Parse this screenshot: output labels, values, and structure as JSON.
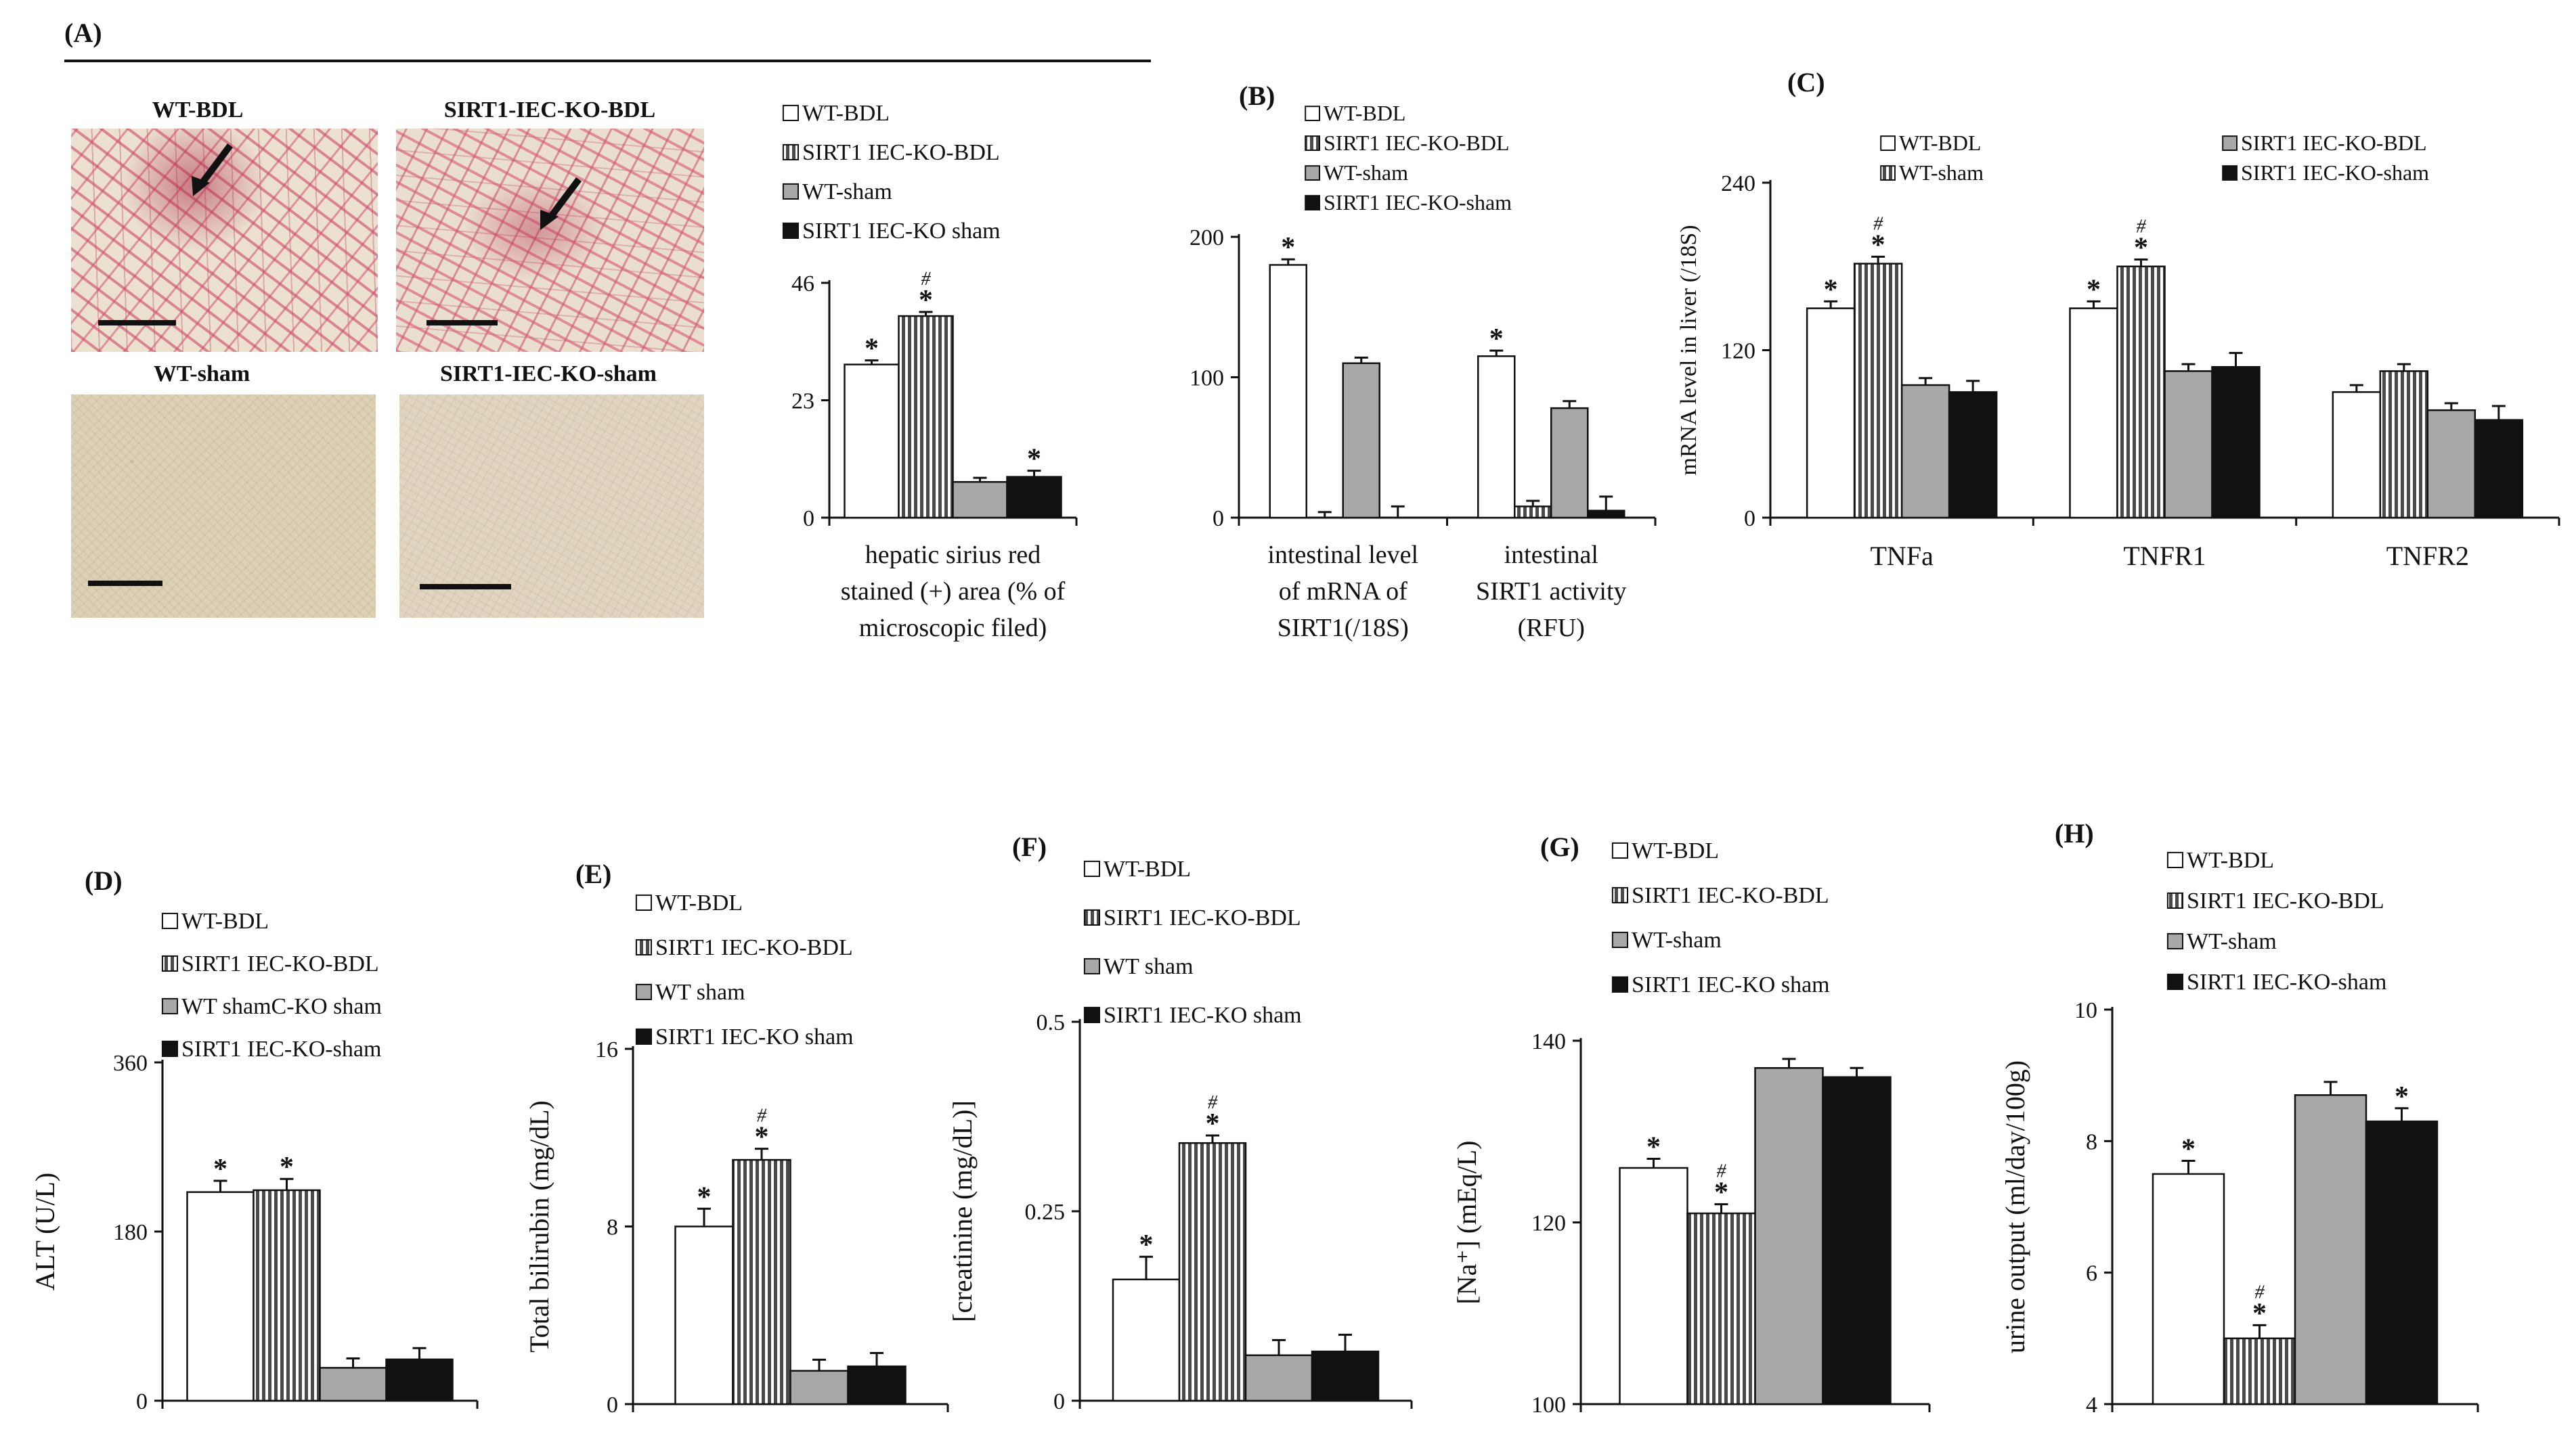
{
  "colors": {
    "wt_bdl": "#ffffff",
    "ko_bdl_stripe": "#4a4a4a",
    "wt_sham": "#a8a8a8",
    "ko_sham": "#111111"
  },
  "panel_A": {
    "label": "(A)",
    "images": {
      "wt_bdl": "WT-BDL",
      "ko_bdl": "SIRT1-IEC-KO-BDL",
      "wt_sham": "WT-sham",
      "ko_sham": "SIRT1-IEC-KO-sham"
    }
  },
  "panel_B": {
    "label": "(B)"
  },
  "panel_C": {
    "label": "(C)"
  },
  "panel_D": {
    "label": "(D)"
  },
  "panel_E": {
    "label": "(E)"
  },
  "panel_F": {
    "label": "(F)"
  },
  "panel_G": {
    "label": "(G)"
  },
  "panel_H": {
    "label": "(H)"
  },
  "chart_data": [
    {
      "id": "A",
      "type": "bar",
      "categories": [
        "hepatic sirius red stained (+) area (% of microscopic filed)"
      ],
      "category_lines": [
        [
          "hepatic sirius red",
          "stained (+) area (% of",
          "microscopic filed)"
        ]
      ],
      "legend": [
        "WT-BDL",
        "SIRT1 IEC-KO-BDL",
        "WT-sham",
        "SIRT1 IEC-KO sham"
      ],
      "series": [
        {
          "name": "WT-BDL",
          "values": [
            30
          ],
          "errors": [
            0.8
          ],
          "marks": [
            "*"
          ]
        },
        {
          "name": "SIRT1 IEC-KO-BDL",
          "values": [
            39.5
          ],
          "errors": [
            0.8
          ],
          "marks": [
            "*#"
          ]
        },
        {
          "name": "WT-sham",
          "values": [
            7
          ],
          "errors": [
            0.8
          ],
          "marks": [
            ""
          ]
        },
        {
          "name": "SIRT1 IEC-KO sham",
          "values": [
            8
          ],
          "errors": [
            1.2
          ],
          "marks": [
            "*"
          ]
        }
      ],
      "ylabel": "",
      "ylim": [
        0,
        46
      ],
      "yticks": [
        0,
        23,
        46
      ]
    },
    {
      "id": "B",
      "type": "bar",
      "categories": [
        "intestinal level of mRNA of SIRT1(/18S)",
        "intestinal SIRT1 activity (RFU)"
      ],
      "category_lines": [
        [
          "intestinal level",
          "of mRNA of",
          "SIRT1(/18S)"
        ],
        [
          "intestinal",
          "SIRT1 activity",
          "(RFU)"
        ]
      ],
      "legend": [
        "WT-BDL",
        "SIRT1 IEC-KO-BDL",
        "WT-sham",
        "SIRT1 IEC-KO-sham"
      ],
      "series": [
        {
          "name": "WT-BDL",
          "values": [
            180,
            115
          ],
          "errors": [
            4,
            4
          ],
          "marks": [
            "*",
            "*"
          ]
        },
        {
          "name": "SIRT1 IEC-KO-BDL",
          "values": [
            0,
            8
          ],
          "errors": [
            4,
            4
          ],
          "marks": [
            "",
            ""
          ]
        },
        {
          "name": "WT-sham",
          "values": [
            110,
            78
          ],
          "errors": [
            4,
            5
          ],
          "marks": [
            "",
            ""
          ]
        },
        {
          "name": "SIRT1 IEC-KO-sham",
          "values": [
            0,
            5
          ],
          "errors": [
            8,
            10
          ],
          "marks": [
            "",
            ""
          ]
        }
      ],
      "ylabel": "",
      "ylim": [
        0,
        200
      ],
      "yticks": [
        0,
        100,
        200
      ]
    },
    {
      "id": "C",
      "type": "bar",
      "categories": [
        "TNFa",
        "TNFR1",
        "TNFR2"
      ],
      "legend": [
        "WT-BDL",
        "WT-sham",
        "SIRT1 IEC-KO-BDL",
        "SIRT1 IEC-KO-sham"
      ],
      "series": [
        {
          "name": "WT-BDL",
          "values": [
            150,
            150,
            90
          ],
          "errors": [
            5,
            5,
            5
          ],
          "marks": [
            "*",
            "*",
            ""
          ]
        },
        {
          "name": "SIRT1 IEC-KO-BDL",
          "values": [
            182,
            180,
            105
          ],
          "errors": [
            5,
            5,
            5
          ],
          "marks": [
            "*#",
            "*#",
            ""
          ]
        },
        {
          "name": "WT-sham",
          "values": [
            95,
            105,
            77
          ],
          "errors": [
            5,
            5,
            5
          ],
          "marks": [
            "",
            "",
            ""
          ]
        },
        {
          "name": "SIRT1 IEC-KO-sham",
          "values": [
            90,
            108,
            70
          ],
          "errors": [
            8,
            10,
            10
          ],
          "marks": [
            "",
            "",
            ""
          ]
        }
      ],
      "ylabel": "mRNA level in liver (/18S)",
      "ylim": [
        0,
        240
      ],
      "yticks": [
        0,
        120,
        240
      ]
    },
    {
      "id": "D",
      "type": "bar",
      "categories": [
        ""
      ],
      "legend": [
        "WT-BDL",
        "SIRT1 IEC-KO-BDL",
        "WT shamC-KO sham",
        "SIRT1 IEC-KO-sham"
      ],
      "series": [
        {
          "name": "WT-BDL",
          "values": [
            222
          ],
          "errors": [
            12
          ],
          "marks": [
            "*"
          ]
        },
        {
          "name": "SIRT1 IEC-KO-BDL",
          "values": [
            224
          ],
          "errors": [
            12
          ],
          "marks": [
            "*"
          ]
        },
        {
          "name": "WT shamC-KO sham",
          "values": [
            35
          ],
          "errors": [
            10
          ],
          "marks": [
            ""
          ]
        },
        {
          "name": "SIRT1 IEC-KO-sham",
          "values": [
            44
          ],
          "errors": [
            12
          ],
          "marks": [
            ""
          ]
        }
      ],
      "ylabel": "ALT (U/L)",
      "ylim": [
        0,
        360
      ],
      "yticks": [
        0,
        180,
        360
      ]
    },
    {
      "id": "E",
      "type": "bar",
      "categories": [
        ""
      ],
      "legend": [
        "WT-BDL",
        "SIRT1 IEC-KO-BDL",
        "WT sham",
        "SIRT1 IEC-KO sham"
      ],
      "series": [
        {
          "name": "WT-BDL",
          "values": [
            8
          ],
          "errors": [
            0.8
          ],
          "marks": [
            "*"
          ]
        },
        {
          "name": "SIRT1 IEC-KO-BDL",
          "values": [
            11
          ],
          "errors": [
            0.5
          ],
          "marks": [
            "*#"
          ]
        },
        {
          "name": "WT sham",
          "values": [
            1.5
          ],
          "errors": [
            0.5
          ],
          "marks": [
            ""
          ]
        },
        {
          "name": "SIRT1 IEC-KO sham",
          "values": [
            1.7
          ],
          "errors": [
            0.6
          ],
          "marks": [
            ""
          ]
        }
      ],
      "ylabel": "Total bilirubin (mg/dL)",
      "ylim": [
        0,
        16
      ],
      "yticks": [
        0,
        8,
        16
      ]
    },
    {
      "id": "F",
      "type": "bar",
      "categories": [
        ""
      ],
      "legend": [
        "WT-BDL",
        "SIRT1 IEC-KO-BDL",
        "WT sham",
        "SIRT1 IEC-KO sham"
      ],
      "series": [
        {
          "name": "WT-BDL",
          "values": [
            0.16
          ],
          "errors": [
            0.03
          ],
          "marks": [
            "*"
          ]
        },
        {
          "name": "SIRT1 IEC-KO-BDL",
          "values": [
            0.34
          ],
          "errors": [
            0.01
          ],
          "marks": [
            "*#"
          ]
        },
        {
          "name": "WT sham",
          "values": [
            0.06
          ],
          "errors": [
            0.02
          ],
          "marks": [
            ""
          ]
        },
        {
          "name": "SIRT1 IEC-KO sham",
          "values": [
            0.065
          ],
          "errors": [
            0.022
          ],
          "marks": [
            ""
          ]
        }
      ],
      "ylabel": "[creatinine (mg/dL)]",
      "ylim": [
        0,
        0.5
      ],
      "yticks": [
        0,
        0.25,
        0.5
      ]
    },
    {
      "id": "G",
      "type": "bar",
      "categories": [
        ""
      ],
      "legend": [
        "WT-BDL",
        "SIRT1 IEC-KO-BDL",
        "WT-sham",
        "SIRT1 IEC-KO sham"
      ],
      "series": [
        {
          "name": "WT-BDL",
          "values": [
            126
          ],
          "errors": [
            1
          ],
          "marks": [
            "*"
          ]
        },
        {
          "name": "SIRT1 IEC-KO-BDL",
          "values": [
            121
          ],
          "errors": [
            1
          ],
          "marks": [
            "*#"
          ]
        },
        {
          "name": "WT-sham",
          "values": [
            137
          ],
          "errors": [
            1
          ],
          "marks": [
            ""
          ]
        },
        {
          "name": "SIRT1 IEC-KO sham",
          "values": [
            136
          ],
          "errors": [
            1
          ],
          "marks": [
            ""
          ]
        }
      ],
      "ylabel": "[Na⁺] (mEq/L)",
      "ylim": [
        100,
        140
      ],
      "yticks": [
        100,
        120,
        140
      ]
    },
    {
      "id": "H",
      "type": "bar",
      "categories": [
        ""
      ],
      "legend": [
        "WT-BDL",
        "SIRT1 IEC-KO-BDL",
        "WT-sham",
        "SIRT1 IEC-KO-sham"
      ],
      "series": [
        {
          "name": "WT-BDL",
          "values": [
            7.5
          ],
          "errors": [
            0.2
          ],
          "marks": [
            "*"
          ]
        },
        {
          "name": "SIRT1 IEC-KO-BDL",
          "values": [
            5.0
          ],
          "errors": [
            0.2
          ],
          "marks": [
            "*#"
          ]
        },
        {
          "name": "WT-sham",
          "values": [
            8.7
          ],
          "errors": [
            0.2
          ],
          "marks": [
            ""
          ]
        },
        {
          "name": "SIRT1 IEC-KO-sham",
          "values": [
            8.3
          ],
          "errors": [
            0.2
          ],
          "marks": [
            "*"
          ]
        }
      ],
      "ylabel": "urine output (ml/day/100g)",
      "ylim": [
        4,
        10
      ],
      "yticks": [
        4,
        6,
        8,
        10
      ]
    }
  ]
}
